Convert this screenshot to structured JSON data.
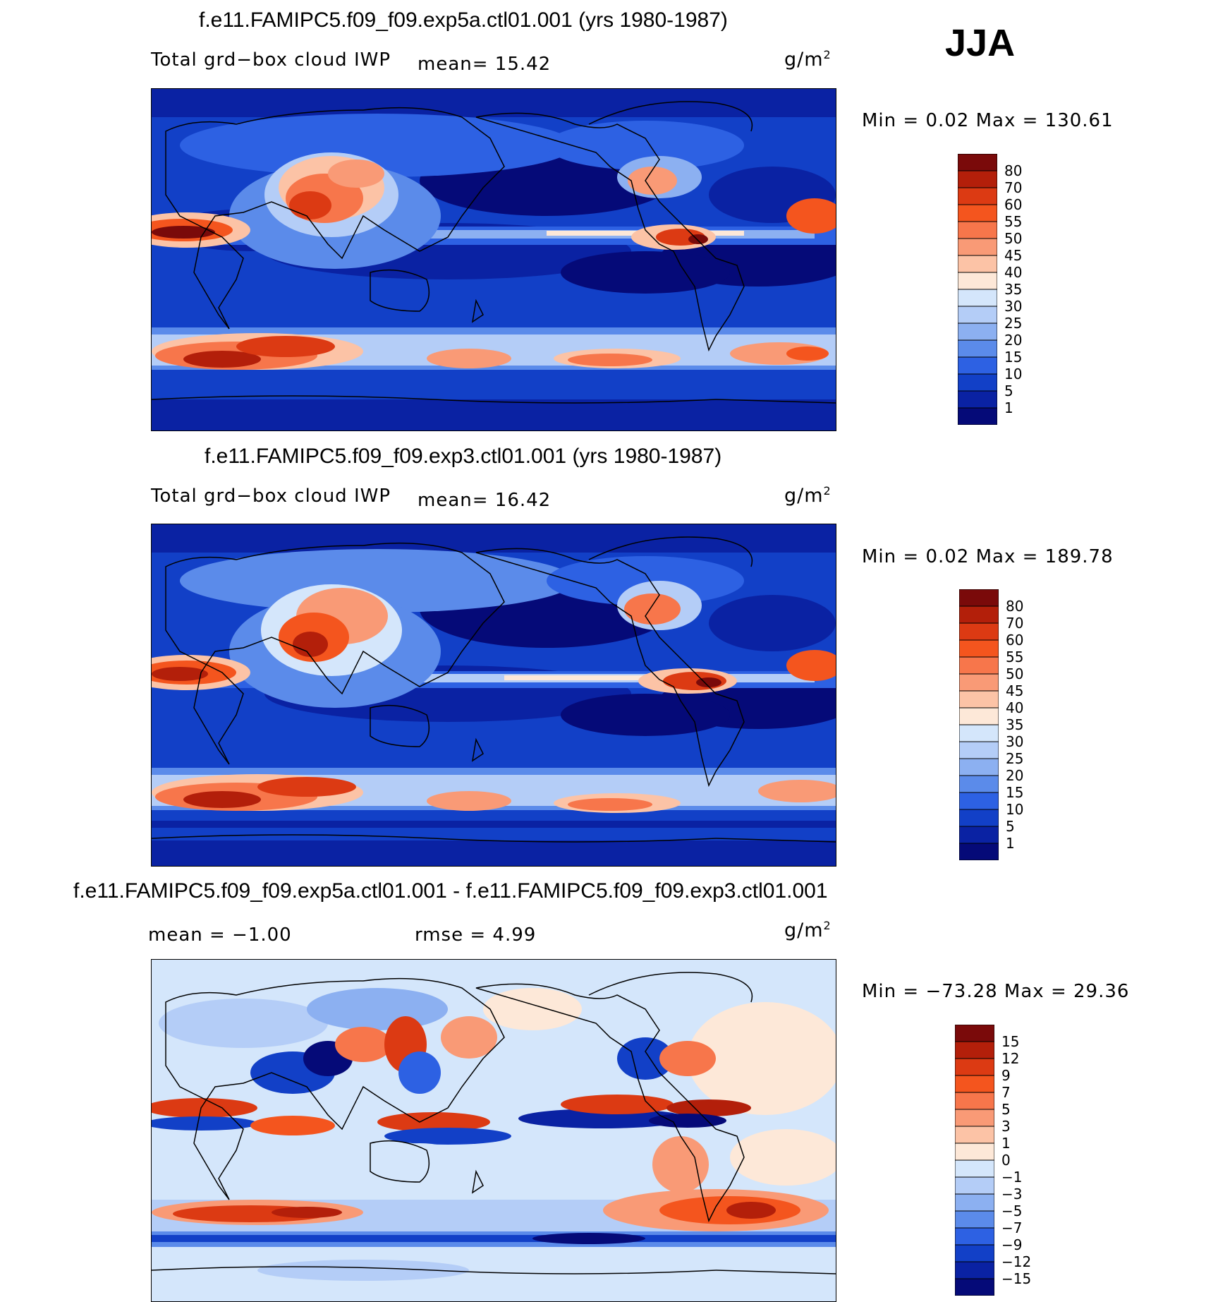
{
  "season": "JJA",
  "panels": [
    {
      "title": "f.e11.FAMIPC5.f09_f09.exp5a.ctl01.001 (yrs 1980-1987)",
      "variable": "Total grd−box cloud IWP",
      "stat_text": "mean=   15.42",
      "units_base": "g/m",
      "units_exp": "2",
      "minmax": "Min  =     0.02  Max  =  130.61",
      "colorbar": {
        "labels": [
          "80",
          "70",
          "60",
          "55",
          "50",
          "45",
          "40",
          "35",
          "30",
          "25",
          "20",
          "15",
          "10",
          "5",
          "1"
        ],
        "colors": [
          "#7a0a0a",
          "#b31f0a",
          "#dc3a13",
          "#f4551e",
          "#f7764b",
          "#f99a76",
          "#fcc3a6",
          "#fde8d8",
          "#d4e6fb",
          "#b4cdf7",
          "#8cb0f1",
          "#5b8bea",
          "#2d61e3",
          "#1240c7",
          "#0a22a3",
          "#050a78"
        ]
      }
    },
    {
      "title": "f.e11.FAMIPC5.f09_f09.exp3.ctl01.001 (yrs 1980-1987)",
      "variable": "Total grd−box cloud IWP",
      "stat_text": "mean=   16.42",
      "units_base": "g/m",
      "units_exp": "2",
      "minmax": "Min  =     0.02  Max  =  189.78",
      "colorbar": {
        "labels": [
          "80",
          "70",
          "60",
          "55",
          "50",
          "45",
          "40",
          "35",
          "30",
          "25",
          "20",
          "15",
          "10",
          "5",
          "1"
        ],
        "colors": [
          "#7a0a0a",
          "#b31f0a",
          "#dc3a13",
          "#f4551e",
          "#f7764b",
          "#f99a76",
          "#fcc3a6",
          "#fde8d8",
          "#d4e6fb",
          "#b4cdf7",
          "#8cb0f1",
          "#5b8bea",
          "#2d61e3",
          "#1240c7",
          "#0a22a3",
          "#050a78"
        ]
      }
    },
    {
      "title": "f.e11.FAMIPC5.f09_f09.exp5a.ctl01.001 - f.e11.FAMIPC5.f09_f09.exp3.ctl01.001",
      "mean_text": "mean  =   −1.00",
      "rmse_text": "rmse  =     4.99",
      "units_base": "g/m",
      "units_exp": "2",
      "minmax": "Min  =  −73.28  Max  =   29.36",
      "colorbar": {
        "labels": [
          "15",
          "12",
          "9",
          "7",
          "5",
          "3",
          "1",
          "0",
          "−1",
          "−3",
          "−5",
          "−7",
          "−9",
          "−12",
          "−15"
        ],
        "colors": [
          "#7a0a0a",
          "#b31f0a",
          "#dc3a13",
          "#f4551e",
          "#f7764b",
          "#f99a76",
          "#fcc3a6",
          "#fde8d8",
          "#d4e6fb",
          "#b4cdf7",
          "#8cb0f1",
          "#5b8bea",
          "#2d61e3",
          "#1240c7",
          "#0a22a3",
          "#050a78"
        ]
      }
    }
  ]
}
